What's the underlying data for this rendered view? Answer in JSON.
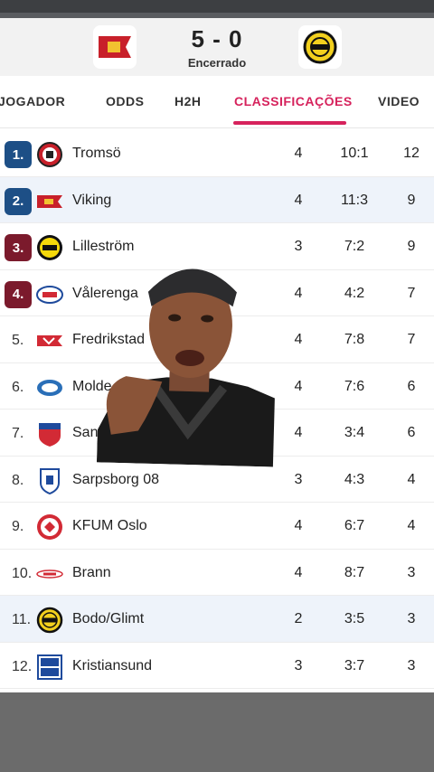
{
  "match": {
    "score": "5 - 0",
    "status": "Encerrado"
  },
  "tabs": [
    {
      "label": "JOGADOR"
    },
    {
      "label": "ODDS"
    },
    {
      "label": "H2H"
    },
    {
      "label": "CLASSIFICAÇÕES"
    },
    {
      "label": "VIDEO"
    }
  ],
  "standings": [
    {
      "pos": "1.",
      "team": "Tromsö",
      "played": "4",
      "goals": "10:1",
      "points": "12"
    },
    {
      "pos": "2.",
      "team": "Viking",
      "played": "4",
      "goals": "11:3",
      "points": "9"
    },
    {
      "pos": "3.",
      "team": "Lilleström",
      "played": "3",
      "goals": "7:2",
      "points": "9"
    },
    {
      "pos": "4.",
      "team": "Vålerenga",
      "played": "4",
      "goals": "4:2",
      "points": "7"
    },
    {
      "pos": "5.",
      "team": "Fredrikstad",
      "played": "4",
      "goals": "7:8",
      "points": "7"
    },
    {
      "pos": "6.",
      "team": "Molde",
      "played": "4",
      "goals": "7:6",
      "points": "6"
    },
    {
      "pos": "7.",
      "team": "Sandefjord",
      "played": "4",
      "goals": "3:4",
      "points": "6"
    },
    {
      "pos": "8.",
      "team": "Sarpsborg 08",
      "played": "3",
      "goals": "4:3",
      "points": "4"
    },
    {
      "pos": "9.",
      "team": "KFUM Oslo",
      "played": "4",
      "goals": "6:7",
      "points": "4"
    },
    {
      "pos": "10.",
      "team": "Brann",
      "played": "4",
      "goals": "8:7",
      "points": "3"
    },
    {
      "pos": "11.",
      "team": "Bodo/Glimt",
      "played": "2",
      "goals": "3:5",
      "points": "3"
    },
    {
      "pos": "12.",
      "team": "Kristiansund",
      "played": "3",
      "goals": "3:7",
      "points": "3"
    }
  ],
  "colors": {
    "accent": "#d6225c",
    "cl": "#1d4f86",
    "ecl": "#7b1a2c"
  },
  "icons": {
    "home_crest": "viking-crest-icon",
    "away_crest": "bodo-glimt-crest-icon"
  }
}
